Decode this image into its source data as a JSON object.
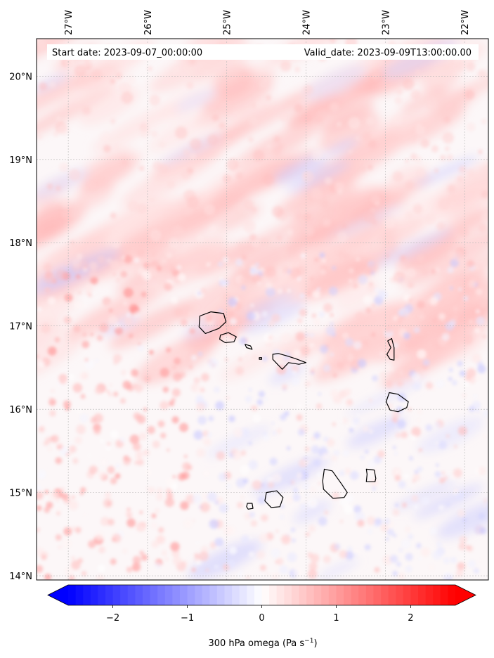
{
  "header": {
    "start_label": "Start date: 2023-09-07_00:00:00",
    "valid_label": "Valid_date: 2023-09-09T13:00:00.00"
  },
  "map": {
    "lon_range": [
      -27.4,
      -21.7
    ],
    "lat_range": [
      13.95,
      20.45
    ],
    "lon_ticks": [
      {
        "value": -27,
        "label": "27°W"
      },
      {
        "value": -26,
        "label": "26°W"
      },
      {
        "value": -25,
        "label": "25°W"
      },
      {
        "value": -24,
        "label": "24°W"
      },
      {
        "value": -23,
        "label": "23°W"
      },
      {
        "value": -22,
        "label": "22°W"
      }
    ],
    "lat_ticks": [
      {
        "value": 20,
        "label": "20°N"
      },
      {
        "value": 19,
        "label": "19°N"
      },
      {
        "value": 18,
        "label": "18°N"
      },
      {
        "value": 17,
        "label": "17°N"
      },
      {
        "value": 16,
        "label": "16°N"
      },
      {
        "value": 15,
        "label": "15°N"
      },
      {
        "value": 14,
        "label": "14°N"
      }
    ],
    "gridlines": true,
    "islands": [
      {
        "name": "Santo Antão",
        "coords": [
          [
            -25.34,
            17.12
          ],
          [
            -25.2,
            17.17
          ],
          [
            -25.04,
            17.15
          ],
          [
            -25.01,
            17.05
          ],
          [
            -25.1,
            16.97
          ],
          [
            -25.27,
            16.91
          ],
          [
            -25.35,
            16.99
          ]
        ]
      },
      {
        "name": "São Vicente",
        "coords": [
          [
            -25.08,
            16.89
          ],
          [
            -24.98,
            16.92
          ],
          [
            -24.88,
            16.87
          ],
          [
            -24.91,
            16.81
          ],
          [
            -25.02,
            16.8
          ],
          [
            -25.09,
            16.84
          ]
        ]
      },
      {
        "name": "Santa Luzia",
        "coords": [
          [
            -24.77,
            16.78
          ],
          [
            -24.7,
            16.76
          ],
          [
            -24.68,
            16.72
          ],
          [
            -24.75,
            16.74
          ]
        ]
      },
      {
        "name": "Raso",
        "coords": [
          [
            -24.59,
            16.62
          ],
          [
            -24.56,
            16.62
          ],
          [
            -24.56,
            16.6
          ],
          [
            -24.59,
            16.6
          ]
        ]
      },
      {
        "name": "São Nicolau",
        "coords": [
          [
            -24.42,
            16.66
          ],
          [
            -24.35,
            16.67
          ],
          [
            -24.24,
            16.64
          ],
          [
            -24.14,
            16.61
          ],
          [
            -24.0,
            16.56
          ],
          [
            -24.09,
            16.54
          ],
          [
            -24.22,
            16.56
          ],
          [
            -24.3,
            16.48
          ],
          [
            -24.36,
            16.54
          ],
          [
            -24.42,
            16.6
          ]
        ]
      },
      {
        "name": "Sal",
        "coords": [
          [
            -22.97,
            16.82
          ],
          [
            -22.92,
            16.85
          ],
          [
            -22.89,
            16.74
          ],
          [
            -22.89,
            16.59
          ],
          [
            -22.94,
            16.6
          ],
          [
            -22.98,
            16.66
          ],
          [
            -22.93,
            16.74
          ]
        ]
      },
      {
        "name": "Boa Vista",
        "coords": [
          [
            -22.95,
            16.2
          ],
          [
            -22.84,
            16.18
          ],
          [
            -22.71,
            16.09
          ],
          [
            -22.73,
            16.02
          ],
          [
            -22.84,
            15.97
          ],
          [
            -22.94,
            15.99
          ],
          [
            -22.99,
            16.09
          ]
        ]
      },
      {
        "name": "Maio",
        "coords": [
          [
            -23.24,
            15.28
          ],
          [
            -23.14,
            15.27
          ],
          [
            -23.12,
            15.17
          ],
          [
            -23.13,
            15.13
          ],
          [
            -23.24,
            15.13
          ],
          [
            -23.23,
            15.22
          ]
        ]
      },
      {
        "name": "Santiago",
        "coords": [
          [
            -23.77,
            15.28
          ],
          [
            -23.67,
            15.26
          ],
          [
            -23.55,
            15.1
          ],
          [
            -23.48,
            15.0
          ],
          [
            -23.52,
            14.94
          ],
          [
            -23.66,
            14.93
          ],
          [
            -23.78,
            15.04
          ],
          [
            -23.79,
            15.14
          ]
        ]
      },
      {
        "name": "Fogo",
        "coords": [
          [
            -24.5,
            15.0
          ],
          [
            -24.37,
            15.02
          ],
          [
            -24.29,
            14.94
          ],
          [
            -24.33,
            14.83
          ],
          [
            -24.44,
            14.82
          ],
          [
            -24.52,
            14.9
          ]
        ]
      },
      {
        "name": "Brava",
        "coords": [
          [
            -24.74,
            14.87
          ],
          [
            -24.68,
            14.87
          ],
          [
            -24.67,
            14.81
          ],
          [
            -24.73,
            14.8
          ],
          [
            -24.75,
            14.83
          ]
        ]
      }
    ]
  },
  "colorbar": {
    "title": "300 hPa omega (Pa s",
    "title_sup": "−1",
    "title_end": ")",
    "vmin": -2.6,
    "vmax": 2.6,
    "ticks": [
      {
        "value": -2,
        "label": "−2"
      },
      {
        "value": -1,
        "label": "−1"
      },
      {
        "value": 0,
        "label": "0"
      },
      {
        "value": 1,
        "label": "1"
      },
      {
        "value": 2,
        "label": "2"
      }
    ],
    "color_min": "#0000ff",
    "color_mid": "#ffffff",
    "color_max": "#ff0000",
    "extend": "both"
  }
}
